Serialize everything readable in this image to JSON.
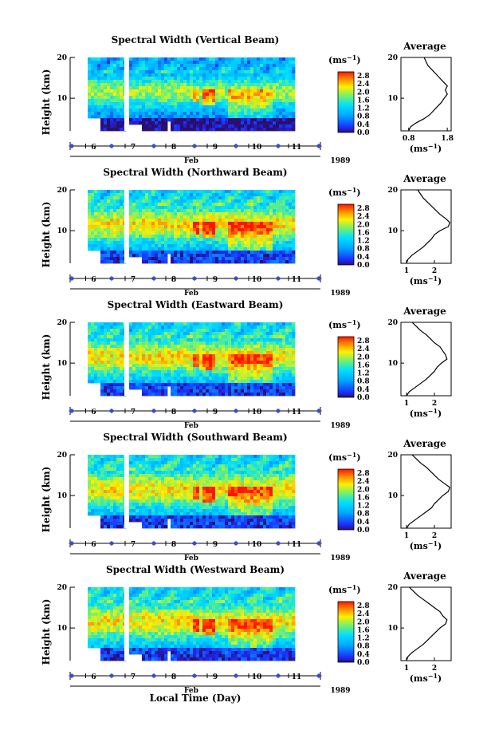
{
  "figure": {
    "xlabel": "Local Time (Day)",
    "month": "Feb",
    "year": "1989",
    "ylabel": "Height (km)",
    "unit_main": "ms",
    "unit_sup": "−1",
    "average_title": "Average",
    "average_unit_main": "ms",
    "average_unit_sup": "−1"
  },
  "chart_data": [
    {
      "type": "heatmap",
      "title": "Spectral Width (Vertical Beam)",
      "x_ticks": [
        "6",
        "7",
        "8",
        "9",
        "10",
        "11"
      ],
      "y_ticks": [
        "10",
        "20"
      ],
      "ylim": [
        2,
        20
      ],
      "colorbar_ticks": [
        "0.0",
        "0.4",
        "0.8",
        "1.2",
        "1.6",
        "2.0",
        "2.4",
        "2.8"
      ],
      "colorbar_range": [
        0,
        3.0
      ],
      "profile": {
        "title": "Average",
        "x_ticks": [
          "0.8",
          "1.8"
        ],
        "xlim": [
          0.6,
          1.9
        ],
        "height_km": [
          2,
          3,
          4,
          5,
          6,
          7,
          8,
          9,
          10,
          11,
          12,
          13,
          14,
          15,
          16,
          17,
          18,
          19,
          20
        ],
        "values": [
          0.8,
          0.85,
          1.0,
          1.2,
          1.35,
          1.45,
          1.55,
          1.65,
          1.72,
          1.8,
          1.75,
          1.8,
          1.7,
          1.6,
          1.5,
          1.4,
          1.3,
          1.25,
          1.2
        ]
      }
    },
    {
      "type": "heatmap",
      "title": "Spectral Width (Northward Beam)",
      "x_ticks": [
        "6",
        "7",
        "8",
        "9",
        "10",
        "11"
      ],
      "y_ticks": [
        "10",
        "20"
      ],
      "ylim": [
        2,
        20
      ],
      "colorbar_ticks": [
        "0.0",
        "0.4",
        "0.8",
        "1.2",
        "1.6",
        "2.0",
        "2.4",
        "2.8"
      ],
      "colorbar_range": [
        0,
        3.0
      ],
      "profile": {
        "title": "Average",
        "x_ticks": [
          "1",
          "2"
        ],
        "xlim": [
          0.8,
          2.6
        ],
        "height_km": [
          2,
          3,
          4,
          5,
          6,
          7,
          8,
          9,
          10,
          11,
          12,
          13,
          14,
          15,
          16,
          17,
          18,
          19,
          20
        ],
        "values": [
          1.0,
          1.05,
          1.2,
          1.4,
          1.6,
          1.75,
          1.9,
          2.0,
          2.2,
          2.5,
          2.55,
          2.4,
          2.2,
          2.05,
          1.9,
          1.75,
          1.6,
          1.5,
          1.4
        ]
      }
    },
    {
      "type": "heatmap",
      "title": "Spectral Width (Eastward Beam)",
      "x_ticks": [
        "6",
        "7",
        "8",
        "9",
        "10",
        "11"
      ],
      "y_ticks": [
        "10",
        "20"
      ],
      "ylim": [
        2,
        20
      ],
      "colorbar_ticks": [
        "0.0",
        "0.4",
        "0.8",
        "1.2",
        "1.6",
        "2.0",
        "2.4",
        "2.8"
      ],
      "colorbar_range": [
        0,
        3.0
      ],
      "profile": {
        "title": "Average",
        "x_ticks": [
          "1",
          "2"
        ],
        "xlim": [
          0.8,
          2.6
        ],
        "height_km": [
          2,
          3,
          4,
          5,
          6,
          7,
          8,
          9,
          10,
          11,
          12,
          13,
          14,
          15,
          16,
          17,
          18,
          19,
          20
        ],
        "values": [
          1.0,
          1.1,
          1.3,
          1.5,
          1.7,
          1.85,
          2.0,
          2.1,
          2.25,
          2.45,
          2.4,
          2.3,
          2.2,
          2.0,
          1.85,
          1.7,
          1.5,
          1.35,
          1.2
        ]
      }
    },
    {
      "type": "heatmap",
      "title": "Spectral Width (Southward Beam)",
      "x_ticks": [
        "6",
        "7",
        "8",
        "9",
        "10",
        "11"
      ],
      "y_ticks": [
        "10",
        "20"
      ],
      "ylim": [
        2,
        20
      ],
      "colorbar_ticks": [
        "0.0",
        "0.4",
        "0.8",
        "1.2",
        "1.6",
        "2.0",
        "2.4",
        "2.8"
      ],
      "colorbar_range": [
        0,
        3.0
      ],
      "profile": {
        "title": "Average",
        "x_ticks": [
          "1",
          "2"
        ],
        "xlim": [
          0.8,
          2.6
        ],
        "height_km": [
          2,
          3,
          4,
          5,
          6,
          7,
          8,
          9,
          10,
          11,
          12,
          13,
          14,
          15,
          16,
          17,
          18,
          19,
          20
        ],
        "values": [
          1.0,
          1.1,
          1.3,
          1.5,
          1.7,
          1.9,
          2.0,
          2.15,
          2.3,
          2.5,
          2.55,
          2.35,
          2.15,
          2.0,
          1.85,
          1.7,
          1.5,
          1.35,
          1.2
        ]
      }
    },
    {
      "type": "heatmap",
      "title": "Spectral Width (Westward Beam)",
      "x_ticks": [
        "6",
        "7",
        "8",
        "9",
        "10",
        "11"
      ],
      "y_ticks": [
        "10",
        "20"
      ],
      "ylim": [
        2,
        20
      ],
      "colorbar_ticks": [
        "0.0",
        "0.4",
        "0.8",
        "1.2",
        "1.6",
        "2.0",
        "2.4",
        "2.8"
      ],
      "colorbar_range": [
        0,
        3.0
      ],
      "profile": {
        "title": "Average",
        "x_ticks": [
          "1",
          "2"
        ],
        "xlim": [
          0.8,
          2.6
        ],
        "height_km": [
          2,
          3,
          4,
          5,
          6,
          7,
          8,
          9,
          10,
          11,
          12,
          13,
          14,
          15,
          16,
          17,
          18,
          19,
          20
        ],
        "values": [
          1.0,
          1.05,
          1.2,
          1.4,
          1.6,
          1.75,
          1.9,
          2.05,
          2.2,
          2.4,
          2.45,
          2.3,
          2.2,
          2.0,
          1.8,
          1.6,
          1.4,
          1.25,
          1.1
        ]
      }
    }
  ]
}
